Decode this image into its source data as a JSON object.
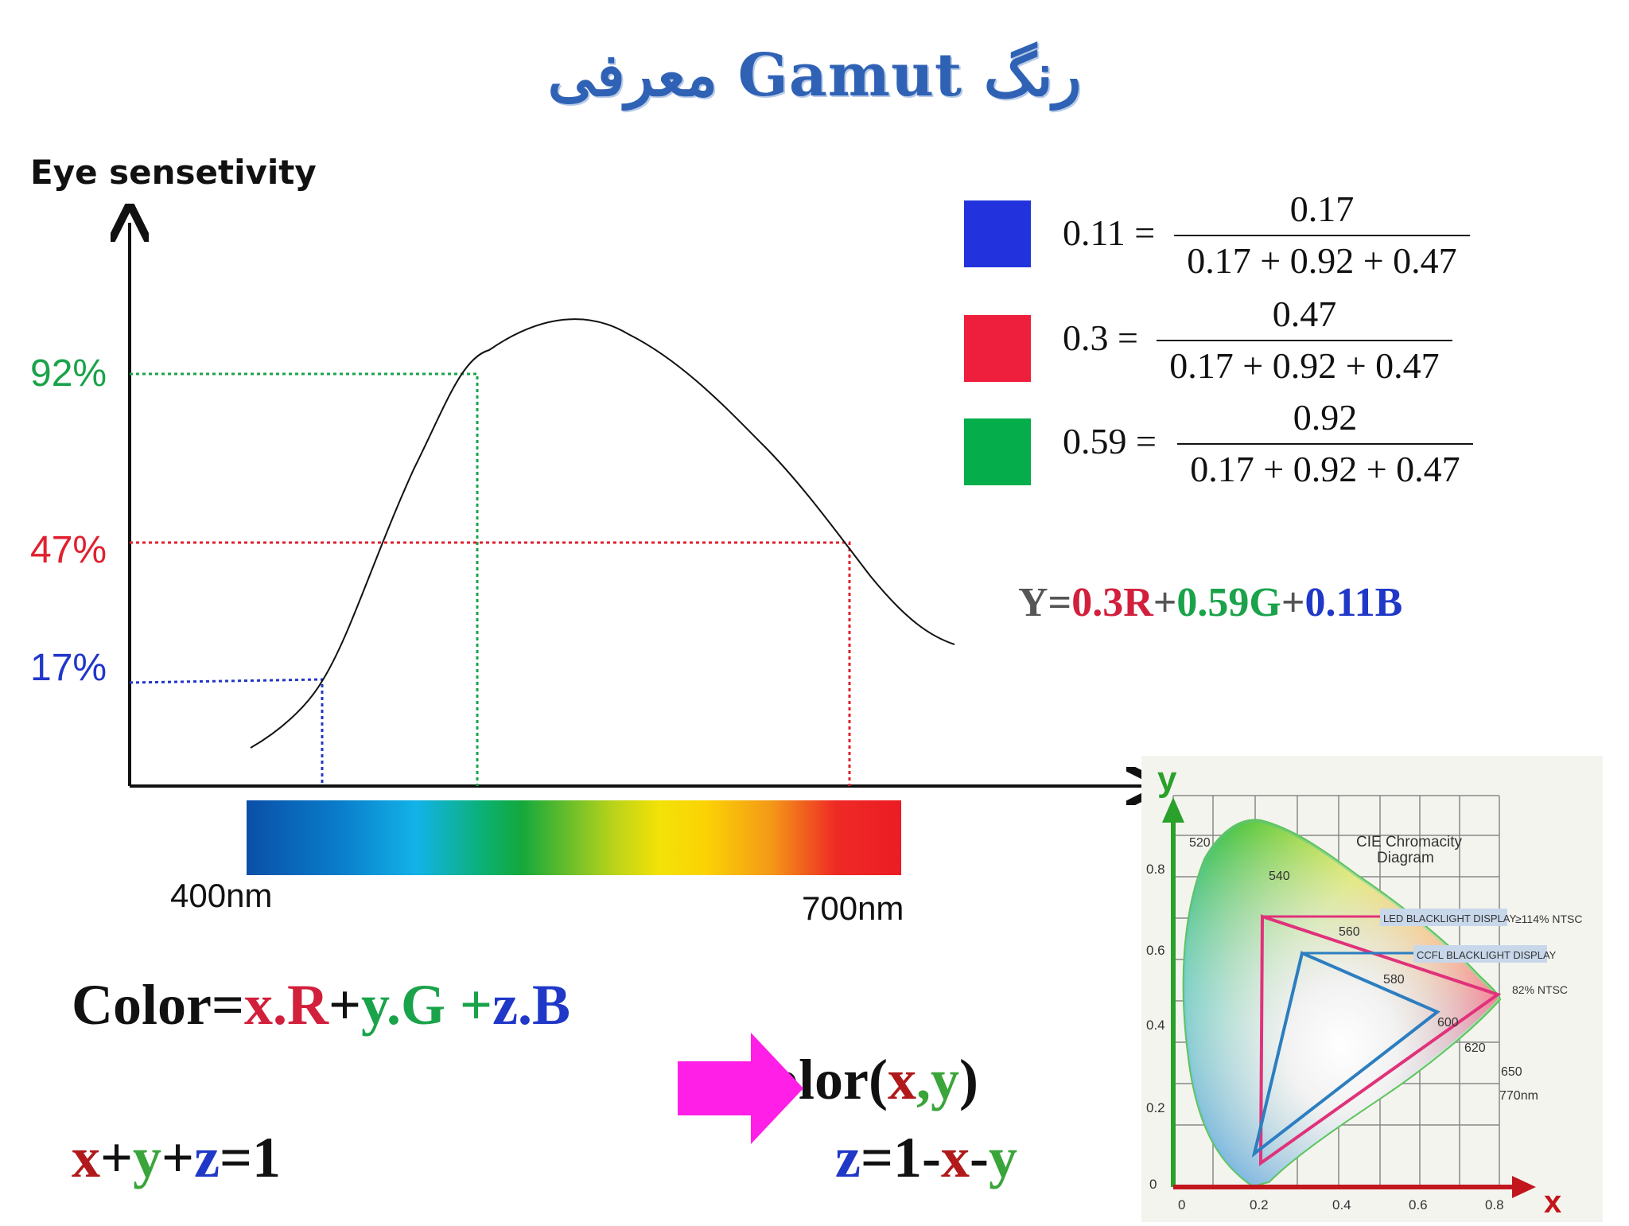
{
  "title": "معرفی Gamut رنگ",
  "sensitivity_chart": {
    "ylabel": "Eye sensetivity",
    "levels": [
      {
        "label": "92%",
        "value": 0.92,
        "color": "#1aa34a"
      },
      {
        "label": "47%",
        "value": 0.47,
        "color": "#e0202e"
      },
      {
        "label": "17%",
        "value": 0.17,
        "color": "#2136c9"
      }
    ],
    "spectrum_start": "400nm",
    "spectrum_end": "700nm"
  },
  "fractions": [
    {
      "color": "#2233dd",
      "lhs": "0.11",
      "num": "0.17",
      "den": "0.17 + 0.92 + 0.47"
    },
    {
      "color": "#ee1f3c",
      "lhs": "0.3",
      "num": "0.47",
      "den": "0.17 + 0.92 + 0.47"
    },
    {
      "color": "#05ad4b",
      "lhs": "0.59",
      "num": "0.92",
      "den": "0.17 + 0.92 + 0.47"
    }
  ],
  "luma": {
    "y": "Y=",
    "r": "0.3R",
    "p1": "+",
    "g": "0.59G",
    "p2": "+",
    "b": "0.11B"
  },
  "color_eq": {
    "a": "Color=",
    "x": "x.R",
    "p1": "+",
    "y": "y.G",
    "p2": " +",
    "z": "z.B"
  },
  "color_xy": {
    "a": "olor(",
    "x": "x",
    "c": ",",
    "y": "y",
    "e": ")"
  },
  "sum_eq": {
    "x": "x",
    "p1": "+",
    "y": "y",
    "p2": "+",
    "z": "z",
    "e": "=1"
  },
  "z_eq": {
    "z": "z",
    "m": "=1-",
    "x": "x",
    "d": "-",
    "y": "y"
  },
  "cie": {
    "title1": "CIE Chromacity",
    "title2": "Diagram",
    "axis_x": "x",
    "axis_y": "y",
    "x_ticks": [
      "0",
      "0.2",
      "0.4",
      "0.6",
      "0.8"
    ],
    "y_ticks": [
      "0",
      "0.2",
      "0.4",
      "0.6",
      "0.8"
    ],
    "wavelengths": [
      "520",
      "540",
      "560",
      "580",
      "600",
      "620",
      "650",
      "770nm"
    ],
    "led_label": "LED BLACKLIGHT DISPLAY",
    "led_ntsc": "≥114% NTSC",
    "ccfl_label": "CCFL BLACKLIGHT DISPLAY",
    "ccfl_ntsc": "82% NTSC"
  }
}
